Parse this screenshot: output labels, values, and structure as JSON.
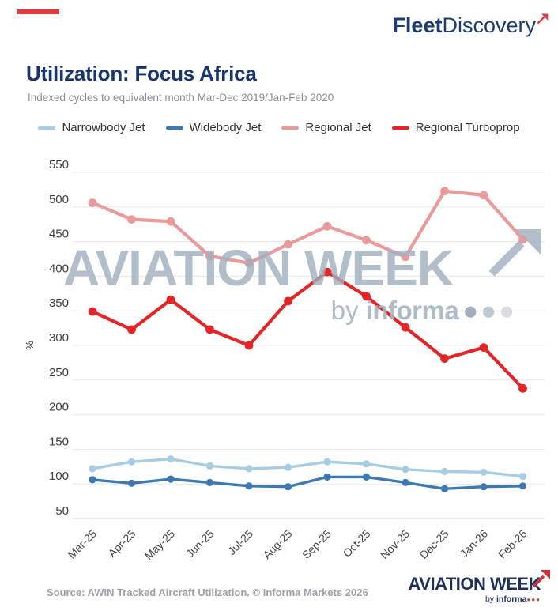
{
  "brand": {
    "bold": "Fleet",
    "regular": "Discovery"
  },
  "title": "Utilization: Focus Africa",
  "subtitle": "Indexed cycles to equivalent month Mar-Dec 2019/Jan-Feb 2020",
  "watermark": {
    "text": "AVIATION WEEK",
    "byline_prefix": "by",
    "byline_brand": "informa",
    "dots": "●●●"
  },
  "footer": {
    "source": "Source: AWIN Tracked Aircraft Utilization. © Informa Markets 2026",
    "logo_text": "AVIATION WEEK",
    "logo_byline_prefix": "by",
    "logo_byline_brand": "informa",
    "logo_dots": "●●●"
  },
  "colors": {
    "accent_red": "#e23a3e",
    "title_navy": "#16356e",
    "watermark_gray": "#9fafbe"
  },
  "chart_data": {
    "type": "line",
    "title": "Utilization: Focus Africa",
    "subtitle": "Indexed cycles to equivalent month Mar-Dec 2019/Jan-Feb 2020",
    "categories": [
      "Mar-25",
      "Apr-25",
      "May-25",
      "Jun-25",
      "Jul-25",
      "Aug-25",
      "Sep-25",
      "Oct-25",
      "Nov-25",
      "Dec-25",
      "Jan-26",
      "Feb-26"
    ],
    "series": [
      {
        "name": "Narrowbody Jet",
        "color": "#a7cde2",
        "values": [
          122,
          132,
          136,
          126,
          122,
          124,
          132,
          129,
          121,
          118,
          117,
          111
        ]
      },
      {
        "name": "Widebody Jet",
        "color": "#3d79b3",
        "values": [
          106,
          101,
          107,
          102,
          97,
          96,
          110,
          110,
          102,
          93,
          96,
          97
        ]
      },
      {
        "name": "Regional Jet",
        "color": "#eb9a9b",
        "values": [
          506,
          482,
          479,
          429,
          419,
          446,
          472,
          452,
          428,
          523,
          517,
          453
        ]
      },
      {
        "name": "Regional Turboprop",
        "color": "#e42527",
        "values": [
          349,
          323,
          366,
          323,
          300,
          364,
          406,
          371,
          326,
          281,
          297,
          238
        ]
      }
    ],
    "xlabel": "",
    "ylabel": "%",
    "ylim": [
      50,
      550
    ],
    "ytick_step": 50,
    "grid": true,
    "legend_position": "top",
    "x_label_rotation": -45
  }
}
